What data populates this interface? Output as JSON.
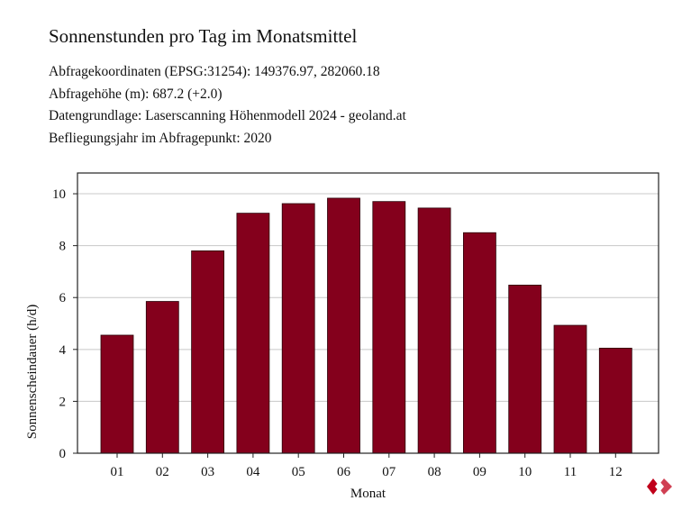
{
  "header": {
    "title": "Sonnenstunden pro Tag im Monatsmittel",
    "lines": [
      "Abfragekoordinaten (EPSG:31254): 149376.97, 282060.18",
      "Abfragehöhe (m): 687.2 (+2.0)",
      "Datengrundlage: Laserscanning Höhenmodell 2024 - geoland.at",
      "Befliegungsjahr im Abfragepunkt: 2020"
    ]
  },
  "chart_data": {
    "type": "bar",
    "title": "Sonnenstunden pro Tag im Monatsmittel",
    "xlabel": "Monat",
    "ylabel": "Sonnenscheindauer (h/d)",
    "categories": [
      "01",
      "02",
      "03",
      "04",
      "05",
      "06",
      "07",
      "08",
      "09",
      "10",
      "11",
      "12"
    ],
    "values": [
      4.55,
      5.85,
      7.8,
      9.25,
      9.62,
      9.83,
      9.7,
      9.45,
      8.5,
      6.48,
      4.93,
      4.05
    ],
    "ylim": [
      0,
      10.8
    ],
    "yticks": [
      0,
      2,
      4,
      6,
      8,
      10
    ],
    "grid": true,
    "bar_color": "#84001c",
    "legend": "none"
  },
  "logo": {
    "icon": "logo-icon",
    "color": "#c0001a"
  }
}
